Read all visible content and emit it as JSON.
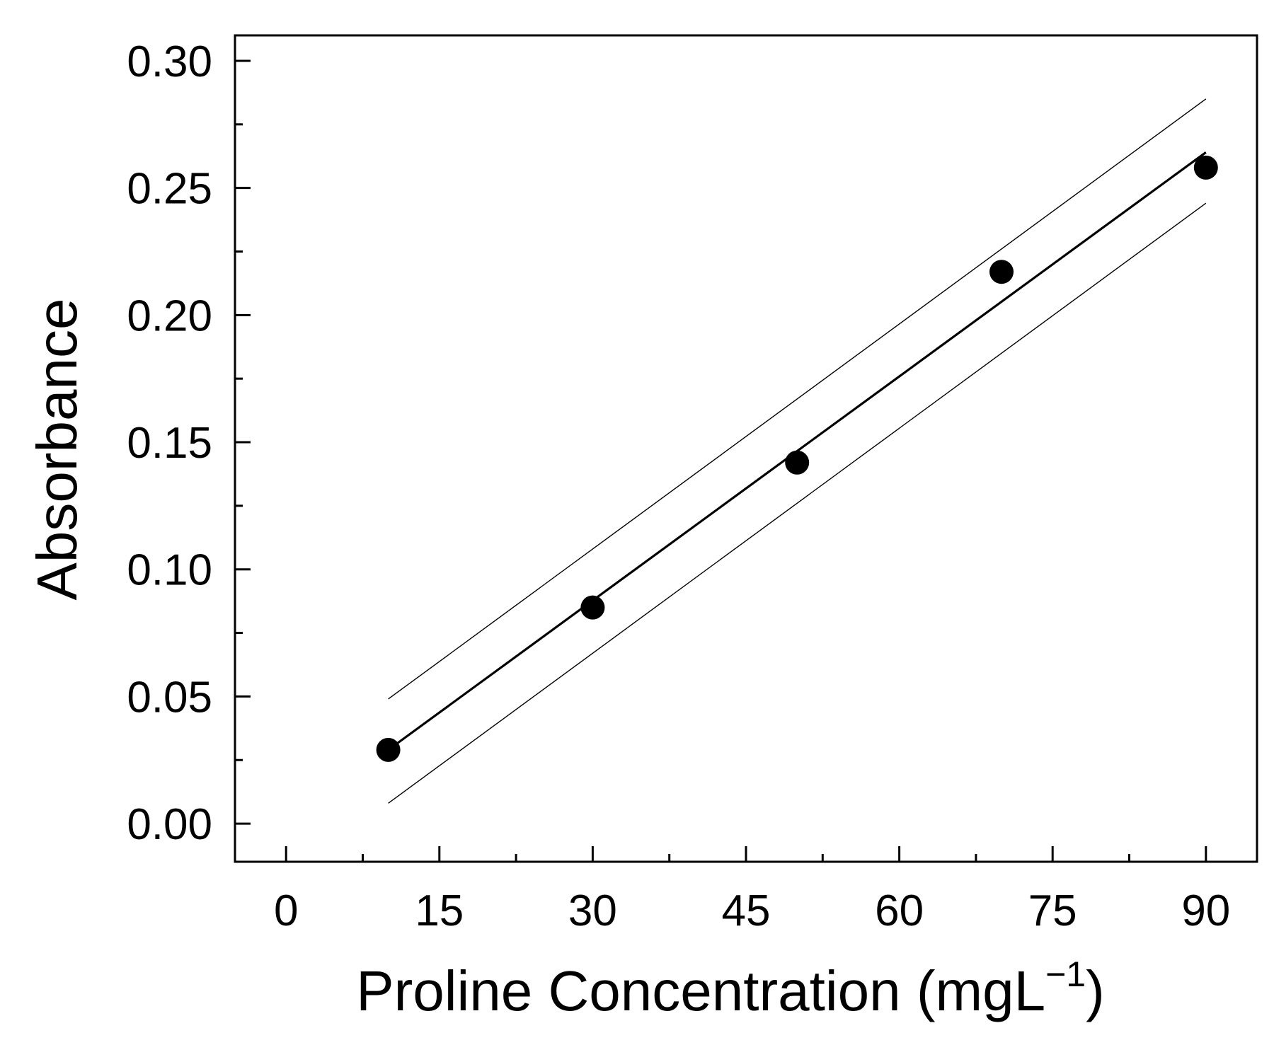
{
  "chart_data": {
    "type": "scatter",
    "xlabel": "Proline Concentration (mgL",
    "xlabel_superscript": "−1",
    "xlabel_close": ")",
    "ylabel": "Absorbance",
    "xlim": [
      -5,
      95
    ],
    "ylim": [
      -0.015,
      0.31
    ],
    "x_ticks": [
      0,
      15,
      30,
      45,
      60,
      75,
      90
    ],
    "x_tick_labels": [
      "0",
      "15",
      "30",
      "45",
      "60",
      "75",
      "90"
    ],
    "y_ticks": [
      0.0,
      0.05,
      0.1,
      0.15,
      0.2,
      0.25,
      0.3
    ],
    "y_tick_labels": [
      "0.00",
      "0.05",
      "0.10",
      "0.15",
      "0.20",
      "0.25",
      "0.30"
    ],
    "grid": false,
    "series": [
      {
        "type": "scatter",
        "x": [
          10,
          30,
          50,
          70,
          90
        ],
        "y": [
          0.029,
          0.085,
          0.142,
          0.217,
          0.258
        ]
      },
      {
        "type": "line",
        "x": [
          10,
          90
        ],
        "y": [
          0.029,
          0.264
        ]
      },
      {
        "type": "line",
        "x": [
          10,
          90
        ],
        "y": [
          0.049,
          0.285
        ]
      },
      {
        "type": "line",
        "x": [
          10,
          90
        ],
        "y": [
          0.008,
          0.244
        ]
      }
    ]
  }
}
